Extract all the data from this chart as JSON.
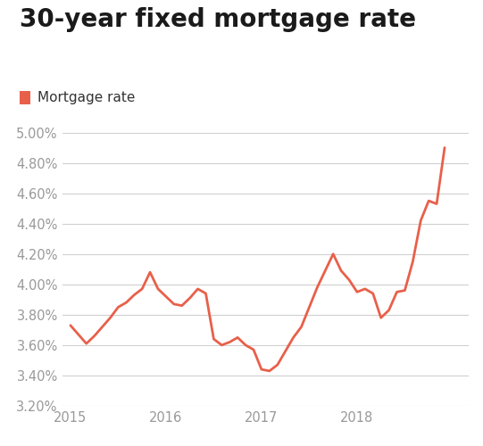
{
  "title": "30-year fixed mortgage rate",
  "legend_label": "Mortgage rate",
  "line_color": "#E8604A",
  "legend_color": "#E8604A",
  "background_color": "#ffffff",
  "grid_color": "#d0d0d0",
  "title_fontsize": 20,
  "legend_fontsize": 11,
  "tick_fontsize": 10.5,
  "ylim": [
    3.2,
    5.05
  ],
  "yticks": [
    3.2,
    3.4,
    3.6,
    3.8,
    4.0,
    4.2,
    4.4,
    4.6,
    4.8,
    5.0
  ],
  "xtick_positions": [
    2015.0,
    2016.0,
    2017.0,
    2018.0
  ],
  "xtick_labels": [
    "2015",
    "2016",
    "2017",
    "2018"
  ],
  "line_width": 2.0,
  "values": [
    3.73,
    3.67,
    3.61,
    3.66,
    3.72,
    3.78,
    3.85,
    3.88,
    3.93,
    3.97,
    4.08,
    3.97,
    3.92,
    3.87,
    3.86,
    3.91,
    3.97,
    3.94,
    3.64,
    3.6,
    3.62,
    3.65,
    3.6,
    3.57,
    3.44,
    3.43,
    3.47,
    3.56,
    3.65,
    3.72,
    3.85,
    3.98,
    4.09,
    4.2,
    4.09,
    4.03,
    3.95,
    3.97,
    3.94,
    3.78,
    3.83,
    3.95,
    3.96,
    4.15,
    4.42,
    4.55,
    4.53,
    4.9
  ]
}
